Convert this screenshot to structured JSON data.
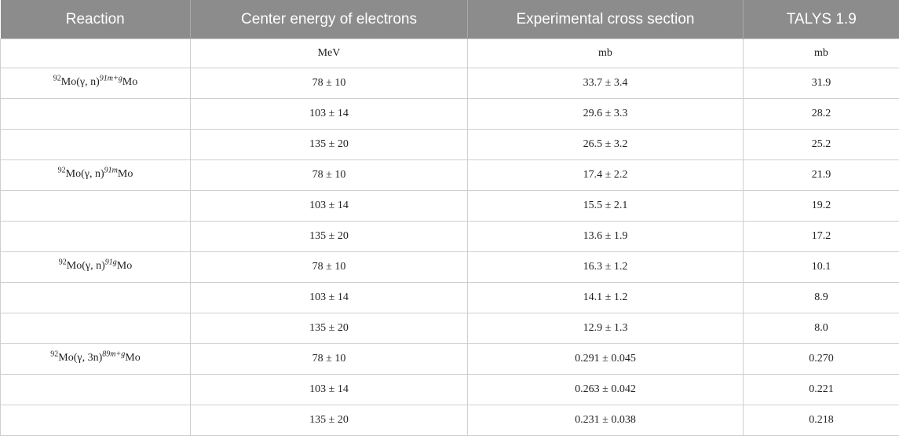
{
  "headers": [
    "Reaction",
    "Center energy of electrons",
    "Experimental cross section",
    "TALYS 1.9"
  ],
  "units": [
    "",
    "MeV",
    "mb",
    "mb"
  ],
  "groups": [
    {
      "reaction": {
        "pre_sup": "92",
        "main": "Mo(γ, n)",
        "post_sup": "91m+g",
        "tail": "Mo"
      },
      "rows": [
        {
          "energy": "78 ± 10",
          "exp": "33.7 ± 3.4",
          "talys": "31.9"
        },
        {
          "energy": "103 ± 14",
          "exp": "29.6 ± 3.3",
          "talys": "28.2"
        },
        {
          "energy": "135 ± 20",
          "exp": "26.5 ± 3.2",
          "talys": "25.2"
        }
      ]
    },
    {
      "reaction": {
        "pre_sup": "92",
        "main": "Mo(γ, n)",
        "post_sup": "91m",
        "tail": "Mo"
      },
      "rows": [
        {
          "energy": "78 ± 10",
          "exp": "17.4 ± 2.2",
          "talys": "21.9"
        },
        {
          "energy": "103 ± 14",
          "exp": "15.5 ± 2.1",
          "talys": "19.2"
        },
        {
          "energy": "135 ± 20",
          "exp": "13.6 ± 1.9",
          "talys": "17.2"
        }
      ]
    },
    {
      "reaction": {
        "pre_sup": "92",
        "main": "Mo(γ, n)",
        "post_sup": "91g",
        "tail": "Mo"
      },
      "rows": [
        {
          "energy": "78 ± 10",
          "exp": "16.3 ± 1.2",
          "talys": "10.1"
        },
        {
          "energy": "103 ± 14",
          "exp": "14.1 ± 1.2",
          "talys": "8.9"
        },
        {
          "energy": "135 ± 20",
          "exp": "12.9 ± 1.3",
          "talys": "8.0"
        }
      ]
    },
    {
      "reaction": {
        "pre_sup": "92",
        "main": "Mo(γ, 3n)",
        "post_sup": "89m+g",
        "tail": "Mo"
      },
      "rows": [
        {
          "energy": "78 ± 10",
          "exp": "0.291 ± 0.045",
          "talys": "0.270"
        },
        {
          "energy": "103 ± 14",
          "exp": "0.263 ± 0.042",
          "talys": "0.221"
        },
        {
          "energy": "135 ± 20",
          "exp": "0.231 ± 0.038",
          "talys": "0.218"
        }
      ]
    }
  ]
}
